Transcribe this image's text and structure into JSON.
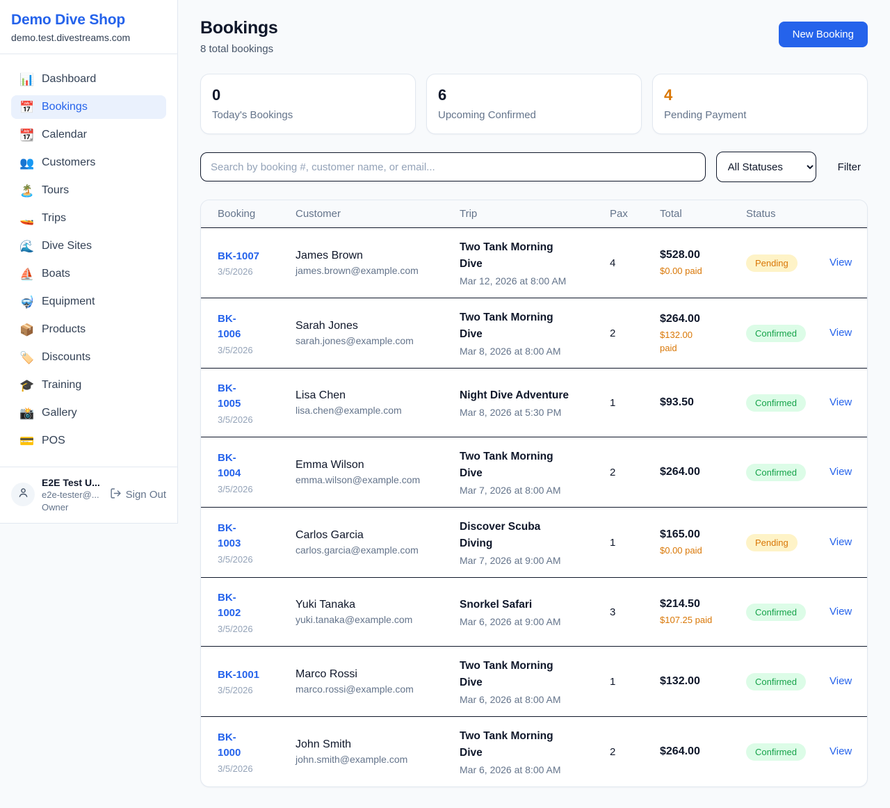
{
  "colors": {
    "accent": "#2563eb",
    "page_background": "#f8fafc",
    "pending_text": "#d97706",
    "pending_background": "#fef3c7",
    "confirmed_text": "#16a34a",
    "confirmed_background": "#dcfce7"
  },
  "sidebar": {
    "brand": "Demo Dive Shop",
    "domain": "demo.test.divestreams.com",
    "items": [
      {
        "icon_name": "dashboard-chart-icon",
        "icon": "📊",
        "label": "Dashboard",
        "active": false
      },
      {
        "icon_name": "bookings-calendar-icon",
        "icon": "📅",
        "label": "Bookings",
        "active": true
      },
      {
        "icon_name": "calendar-icon",
        "icon": "📆",
        "label": "Calendar",
        "active": false
      },
      {
        "icon_name": "customers-people-icon",
        "icon": "👥",
        "label": "Customers",
        "active": false
      },
      {
        "icon_name": "tours-island-icon",
        "icon": "🏝️",
        "label": "Tours",
        "active": false
      },
      {
        "icon_name": "trips-boat-icon",
        "icon": "🚤",
        "label": "Trips",
        "active": false
      },
      {
        "icon_name": "dive-sites-wave-icon",
        "icon": "🌊",
        "label": "Dive Sites",
        "active": false
      },
      {
        "icon_name": "boats-sailboat-icon",
        "icon": "⛵",
        "label": "Boats",
        "active": false
      },
      {
        "icon_name": "equipment-mask-icon",
        "icon": "🤿",
        "label": "Equipment",
        "active": false
      },
      {
        "icon_name": "products-package-icon",
        "icon": "📦",
        "label": "Products",
        "active": false
      },
      {
        "icon_name": "discounts-tag-icon",
        "icon": "🏷️",
        "label": "Discounts",
        "active": false
      },
      {
        "icon_name": "training-grad-cap-icon",
        "icon": "🎓",
        "label": "Training",
        "active": false
      },
      {
        "icon_name": "gallery-camera-icon",
        "icon": "📸",
        "label": "Gallery",
        "active": false
      },
      {
        "icon_name": "pos-credit-card-icon",
        "icon": "💳",
        "label": "POS",
        "active": false
      }
    ],
    "user": {
      "name": "E2E Test U...",
      "email": "e2e-tester@...",
      "role": "Owner",
      "sign_out_label": "Sign Out",
      "avatar_icon": "person-icon",
      "sign_out_icon": "logout-icon"
    }
  },
  "header": {
    "title": "Bookings",
    "subtitle": "8 total bookings",
    "new_booking_label": "New Booking"
  },
  "stats": [
    {
      "value": "0",
      "label": "Today's Bookings",
      "highlight": false
    },
    {
      "value": "6",
      "label": "Upcoming Confirmed",
      "highlight": false
    },
    {
      "value": "4",
      "label": "Pending Payment",
      "highlight": true
    }
  ],
  "controls": {
    "search_placeholder": "Search by booking #, customer name, or email...",
    "status_filter_value": "All Statuses",
    "filter_label": "Filter"
  },
  "table": {
    "columns": [
      "Booking",
      "Customer",
      "Trip",
      "Pax",
      "Total",
      "Status"
    ],
    "view_label": "View",
    "rows": [
      {
        "id": "BK-1007",
        "id_lines": [
          "BK-1007"
        ],
        "date": "3/5/2026",
        "customer": "James Brown",
        "email": "james.brown@example.com",
        "trip_lines": [
          "Two Tank Morning",
          "Dive"
        ],
        "trip_time": "Mar 12, 2026 at 8:00 AM",
        "pax": "4",
        "total": "$528.00",
        "paid_lines": [
          "$0.00 paid"
        ],
        "status": "Pending"
      },
      {
        "id": "BK-1006",
        "id_lines": [
          "BK-",
          "1006"
        ],
        "date": "3/5/2026",
        "customer": "Sarah Jones",
        "email": "sarah.jones@example.com",
        "trip_lines": [
          "Two Tank Morning",
          "Dive"
        ],
        "trip_time": "Mar 8, 2026 at 8:00 AM",
        "pax": "2",
        "total": "$264.00",
        "paid_lines": [
          "$132.00",
          "paid"
        ],
        "status": "Confirmed"
      },
      {
        "id": "BK-1005",
        "id_lines": [
          "BK-",
          "1005"
        ],
        "date": "3/5/2026",
        "customer": "Lisa Chen",
        "email": "lisa.chen@example.com",
        "trip_lines": [
          "Night Dive Adventure"
        ],
        "trip_time": "Mar 8, 2026 at 5:30 PM",
        "pax": "1",
        "total": "$93.50",
        "paid_lines": null,
        "status": "Confirmed"
      },
      {
        "id": "BK-1004",
        "id_lines": [
          "BK-",
          "1004"
        ],
        "date": "3/5/2026",
        "customer": "Emma Wilson",
        "email": "emma.wilson@example.com",
        "trip_lines": [
          "Two Tank Morning",
          "Dive"
        ],
        "trip_time": "Mar 7, 2026 at 8:00 AM",
        "pax": "2",
        "total": "$264.00",
        "paid_lines": null,
        "status": "Confirmed"
      },
      {
        "id": "BK-1003",
        "id_lines": [
          "BK-",
          "1003"
        ],
        "date": "3/5/2026",
        "customer": "Carlos Garcia",
        "email": "carlos.garcia@example.com",
        "trip_lines": [
          "Discover Scuba",
          "Diving"
        ],
        "trip_time": "Mar 7, 2026 at 9:00 AM",
        "pax": "1",
        "total": "$165.00",
        "paid_lines": [
          "$0.00 paid"
        ],
        "status": "Pending"
      },
      {
        "id": "BK-1002",
        "id_lines": [
          "BK-",
          "1002"
        ],
        "date": "3/5/2026",
        "customer": "Yuki Tanaka",
        "email": "yuki.tanaka@example.com",
        "trip_lines": [
          "Snorkel Safari"
        ],
        "trip_time": "Mar 6, 2026 at 9:00 AM",
        "pax": "3",
        "total": "$214.50",
        "paid_lines": [
          "$107.25 paid"
        ],
        "status": "Confirmed"
      },
      {
        "id": "BK-1001",
        "id_lines": [
          "BK-1001"
        ],
        "date": "3/5/2026",
        "customer": "Marco Rossi",
        "email": "marco.rossi@example.com",
        "trip_lines": [
          "Two Tank Morning",
          "Dive"
        ],
        "trip_time": "Mar 6, 2026 at 8:00 AM",
        "pax": "1",
        "total": "$132.00",
        "paid_lines": null,
        "status": "Confirmed"
      },
      {
        "id": "BK-1000",
        "id_lines": [
          "BK-",
          "1000"
        ],
        "date": "3/5/2026",
        "customer": "John Smith",
        "email": "john.smith@example.com",
        "trip_lines": [
          "Two Tank Morning",
          "Dive"
        ],
        "trip_time": "Mar 6, 2026 at 8:00 AM",
        "pax": "2",
        "total": "$264.00",
        "paid_lines": null,
        "status": "Confirmed"
      }
    ]
  }
}
